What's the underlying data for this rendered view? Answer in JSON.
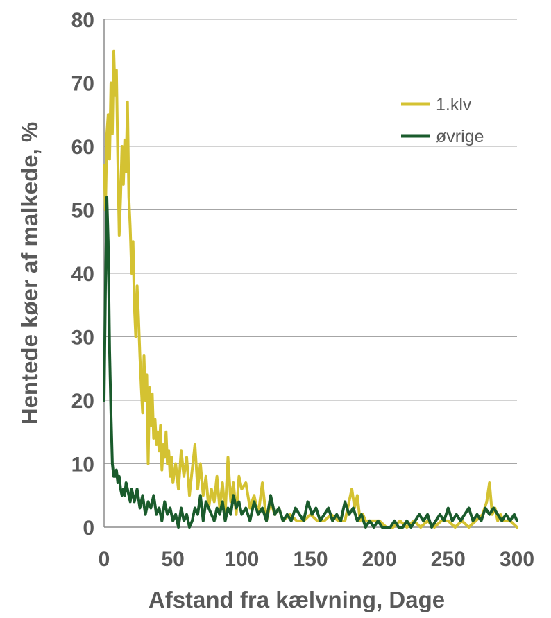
{
  "chart_data": {
    "type": "line",
    "title": "",
    "xlabel": "Afstand fra kælvning, Dage",
    "ylabel": "Hentede køer af malkede, %",
    "xlim": [
      0,
      300
    ],
    "ylim": [
      0,
      80
    ],
    "xticks": [
      "0",
      "50",
      "100",
      "150",
      "200",
      "250",
      "300"
    ],
    "yticks": [
      "0",
      "10",
      "20",
      "30",
      "40",
      "50",
      "60",
      "70",
      "80"
    ],
    "grid": "horizontal",
    "legend_position": "top-right",
    "series": [
      {
        "name": "1.klv",
        "color": "#d4c232",
        "x": [
          0,
          1,
          2,
          3,
          4,
          5,
          6,
          7,
          8,
          9,
          10,
          11,
          12,
          13,
          14,
          15,
          16,
          17,
          18,
          19,
          20,
          21,
          22,
          23,
          24,
          25,
          26,
          27,
          28,
          29,
          30,
          31,
          32,
          33,
          34,
          35,
          36,
          37,
          38,
          39,
          40,
          41,
          42,
          43,
          44,
          45,
          46,
          47,
          48,
          49,
          50,
          52,
          54,
          56,
          58,
          60,
          62,
          64,
          66,
          68,
          70,
          72,
          74,
          76,
          78,
          80,
          82,
          84,
          86,
          88,
          90,
          92,
          94,
          96,
          98,
          100,
          103,
          106,
          109,
          112,
          115,
          118,
          121,
          124,
          127,
          130,
          135,
          140,
          145,
          150,
          155,
          160,
          165,
          170,
          175,
          178,
          180,
          182,
          184,
          186,
          188,
          190,
          195,
          200,
          205,
          210,
          215,
          220,
          225,
          230,
          235,
          240,
          245,
          250,
          255,
          260,
          265,
          270,
          275,
          278,
          280,
          282,
          284,
          286,
          288,
          290,
          295,
          300
        ],
        "values": [
          57,
          50,
          62,
          65,
          58,
          70,
          62,
          75,
          68,
          72,
          58,
          46,
          52,
          60,
          54,
          61,
          56,
          67,
          52,
          47,
          40,
          45,
          35,
          30,
          38,
          33,
          27,
          22,
          18,
          27,
          20,
          24,
          10,
          22,
          16,
          21,
          14,
          17,
          13,
          15,
          12,
          16,
          9,
          13,
          11,
          15,
          10,
          12,
          8,
          11,
          7,
          10,
          6,
          12,
          8,
          11,
          5,
          9,
          13,
          6,
          10,
          5,
          8,
          3,
          6,
          4,
          8,
          3,
          7,
          2,
          11,
          4,
          7,
          2,
          8,
          6,
          7,
          3,
          5,
          2,
          7,
          1,
          4,
          2,
          3,
          1,
          2,
          1,
          1,
          2,
          1,
          1,
          2,
          1,
          1,
          4,
          6,
          3,
          5,
          1,
          2,
          1,
          1,
          1,
          0,
          0,
          1,
          0,
          1,
          0,
          1,
          0,
          1,
          1,
          0,
          1,
          0,
          1,
          2,
          4,
          7,
          2,
          3,
          1,
          2,
          1,
          1,
          0
        ]
      },
      {
        "name": "øvrige",
        "color": "#1a5b2c",
        "x": [
          0,
          1,
          2,
          3,
          4,
          5,
          6,
          7,
          8,
          9,
          10,
          11,
          12,
          13,
          14,
          15,
          16,
          17,
          18,
          19,
          20,
          22,
          24,
          26,
          28,
          30,
          32,
          34,
          36,
          38,
          40,
          42,
          44,
          46,
          48,
          50,
          52,
          54,
          56,
          58,
          60,
          62,
          64,
          66,
          68,
          70,
          72,
          74,
          76,
          78,
          80,
          82,
          84,
          86,
          88,
          90,
          92,
          94,
          96,
          98,
          100,
          103,
          106,
          109,
          112,
          115,
          118,
          121,
          124,
          127,
          130,
          133,
          136,
          139,
          142,
          145,
          148,
          151,
          154,
          157,
          160,
          163,
          166,
          169,
          172,
          175,
          178,
          181,
          184,
          187,
          190,
          193,
          196,
          199,
          202,
          205,
          208,
          211,
          214,
          217,
          220,
          223,
          226,
          229,
          232,
          235,
          238,
          241,
          244,
          247,
          250,
          253,
          256,
          259,
          262,
          265,
          268,
          271,
          274,
          277,
          280,
          283,
          286,
          289,
          292,
          295,
          298,
          300
        ],
        "values": [
          20,
          38,
          52,
          45,
          28,
          18,
          10,
          8,
          8,
          9,
          7,
          8,
          6,
          5,
          6,
          5,
          7,
          6,
          5,
          4,
          6,
          4,
          6,
          3,
          5,
          2,
          4,
          3,
          5,
          2,
          3,
          1,
          4,
          2,
          3,
          1,
          2,
          0,
          3,
          1,
          2,
          0,
          1,
          3,
          2,
          5,
          1,
          4,
          3,
          2,
          1,
          3,
          2,
          4,
          1,
          3,
          2,
          5,
          3,
          4,
          2,
          3,
          1,
          4,
          2,
          3,
          1,
          5,
          2,
          3,
          1,
          2,
          1,
          3,
          2,
          1,
          4,
          2,
          3,
          1,
          2,
          3,
          1,
          2,
          1,
          4,
          2,
          3,
          1,
          2,
          0,
          1,
          0,
          1,
          0,
          0,
          0,
          1,
          0,
          0,
          1,
          0,
          1,
          2,
          1,
          2,
          0,
          1,
          2,
          1,
          3,
          1,
          2,
          1,
          2,
          3,
          1,
          2,
          1,
          3,
          2,
          3,
          2,
          1,
          2,
          1,
          2,
          1
        ]
      }
    ]
  }
}
